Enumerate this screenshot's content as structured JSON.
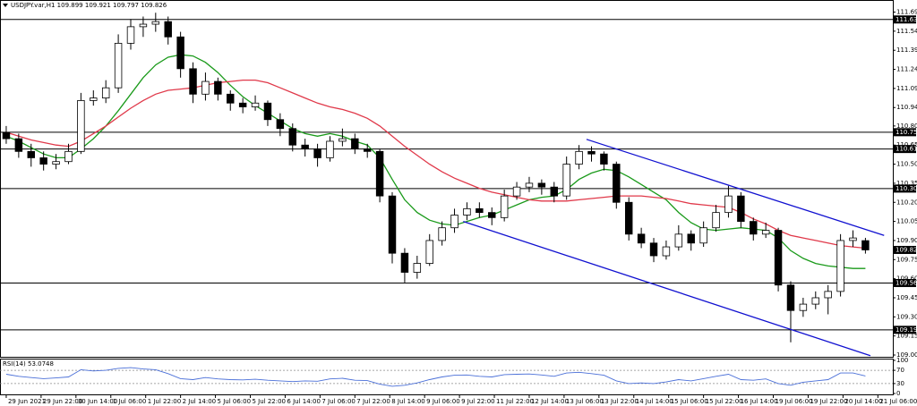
{
  "chart_data": {
    "type": "candlestick",
    "title": "USDJPY.var,H1",
    "ohlc": [
      [
        110.75,
        110.8,
        110.66,
        110.7
      ],
      [
        110.7,
        110.74,
        110.55,
        110.6
      ],
      [
        110.6,
        110.66,
        110.48,
        110.55
      ],
      [
        110.55,
        110.6,
        110.45,
        110.5
      ],
      [
        110.5,
        110.58,
        110.46,
        110.52
      ],
      [
        110.52,
        110.66,
        110.5,
        110.6
      ],
      [
        110.6,
        111.06,
        110.58,
        111.0
      ],
      [
        111.0,
        111.08,
        110.96,
        111.02
      ],
      [
        111.02,
        111.16,
        110.98,
        111.1
      ],
      [
        111.1,
        111.52,
        111.06,
        111.45
      ],
      [
        111.45,
        111.64,
        111.4,
        111.58
      ],
      [
        111.58,
        111.66,
        111.5,
        111.6
      ],
      [
        111.6,
        111.69,
        111.54,
        111.62
      ],
      [
        111.62,
        111.66,
        111.44,
        111.5
      ],
      [
        111.5,
        111.54,
        111.18,
        111.25
      ],
      [
        111.25,
        111.3,
        110.98,
        111.05
      ],
      [
        111.05,
        111.22,
        111.0,
        111.15
      ],
      [
        111.15,
        111.18,
        111.0,
        111.05
      ],
      [
        111.05,
        111.08,
        110.92,
        110.98
      ],
      [
        110.98,
        111.02,
        110.9,
        110.95
      ],
      [
        110.95,
        111.04,
        110.92,
        110.98
      ],
      [
        110.98,
        111.0,
        110.8,
        110.85
      ],
      [
        110.85,
        110.9,
        110.72,
        110.78
      ],
      [
        110.78,
        110.82,
        110.6,
        110.65
      ],
      [
        110.65,
        110.7,
        110.56,
        110.62
      ],
      [
        110.62,
        110.66,
        110.48,
        110.55
      ],
      [
        110.55,
        110.72,
        110.52,
        110.68
      ],
      [
        110.68,
        110.78,
        110.64,
        110.7
      ],
      [
        110.7,
        110.74,
        110.58,
        110.62
      ],
      [
        110.62,
        110.66,
        110.55,
        110.6
      ],
      [
        110.6,
        110.62,
        110.2,
        110.25
      ],
      [
        110.25,
        110.28,
        109.72,
        109.8
      ],
      [
        109.8,
        109.84,
        109.57,
        109.65
      ],
      [
        109.65,
        109.78,
        109.6,
        109.72
      ],
      [
        109.72,
        109.95,
        109.7,
        109.9
      ],
      [
        109.9,
        110.05,
        109.86,
        110.0
      ],
      [
        110.0,
        110.15,
        109.96,
        110.1
      ],
      [
        110.1,
        110.2,
        110.06,
        110.15
      ],
      [
        110.15,
        110.2,
        110.08,
        110.12
      ],
      [
        110.12,
        110.16,
        110.02,
        110.08
      ],
      [
        110.08,
        110.3,
        110.05,
        110.25
      ],
      [
        110.25,
        110.36,
        110.22,
        110.32
      ],
      [
        110.32,
        110.4,
        110.28,
        110.35
      ],
      [
        110.35,
        110.38,
        110.26,
        110.32
      ],
      [
        110.32,
        110.36,
        110.2,
        110.25
      ],
      [
        110.25,
        110.56,
        110.22,
        110.5
      ],
      [
        110.5,
        110.65,
        110.46,
        110.6
      ],
      [
        110.6,
        110.64,
        110.52,
        110.58
      ],
      [
        110.58,
        110.6,
        110.45,
        110.5
      ],
      [
        110.5,
        110.52,
        110.15,
        110.2
      ],
      [
        110.2,
        110.24,
        109.9,
        109.95
      ],
      [
        109.95,
        110.0,
        109.84,
        109.88
      ],
      [
        109.88,
        109.92,
        109.73,
        109.78
      ],
      [
        109.78,
        109.9,
        109.75,
        109.85
      ],
      [
        109.85,
        110.02,
        109.82,
        109.95
      ],
      [
        109.95,
        109.98,
        109.82,
        109.88
      ],
      [
        109.88,
        110.05,
        109.85,
        110.0
      ],
      [
        110.0,
        110.18,
        109.97,
        110.12
      ],
      [
        110.12,
        110.33,
        110.08,
        110.25
      ],
      [
        110.25,
        110.28,
        110.0,
        110.05
      ],
      [
        110.05,
        110.08,
        109.9,
        109.95
      ],
      [
        109.95,
        110.04,
        109.92,
        109.98
      ],
      [
        109.98,
        110.0,
        109.5,
        109.55
      ],
      [
        109.55,
        109.58,
        109.1,
        109.35
      ],
      [
        109.35,
        109.45,
        109.3,
        109.4
      ],
      [
        109.4,
        109.5,
        109.36,
        109.45
      ],
      [
        109.45,
        109.55,
        109.32,
        109.5
      ],
      [
        109.5,
        109.95,
        109.46,
        109.9
      ],
      [
        109.9,
        109.98,
        109.85,
        109.92
      ],
      [
        109.899,
        109.921,
        109.797,
        109.826
      ]
    ],
    "moving_averages": [
      {
        "color": "#1a9a1a",
        "values": [
          110.72,
          110.68,
          110.63,
          110.58,
          110.55,
          110.55,
          110.62,
          110.7,
          110.8,
          110.92,
          111.05,
          111.18,
          111.28,
          111.34,
          111.36,
          111.35,
          111.3,
          111.22,
          111.12,
          111.03,
          110.96,
          110.9,
          110.84,
          110.78,
          110.74,
          110.72,
          110.74,
          110.72,
          110.68,
          110.65,
          110.55,
          110.38,
          110.22,
          110.12,
          110.06,
          110.03,
          110.02,
          110.05,
          110.08,
          110.1,
          110.14,
          110.18,
          110.22,
          110.24,
          110.25,
          110.3,
          110.38,
          110.43,
          110.46,
          110.45,
          110.4,
          110.34,
          110.28,
          110.22,
          110.12,
          110.04,
          109.99,
          109.98,
          109.99,
          110.0,
          109.99,
          109.98,
          109.92,
          109.82,
          109.76,
          109.72,
          109.7,
          109.69,
          109.68,
          109.68
        ]
      },
      {
        "color": "#e0394a",
        "values": [
          110.75,
          110.72,
          110.69,
          110.67,
          110.65,
          110.64,
          110.68,
          110.74,
          110.8,
          110.87,
          110.94,
          111.0,
          111.05,
          111.08,
          111.09,
          111.1,
          111.12,
          111.14,
          111.15,
          111.16,
          111.16,
          111.14,
          111.1,
          111.06,
          111.02,
          110.98,
          110.95,
          110.93,
          110.9,
          110.86,
          110.8,
          110.72,
          110.64,
          110.57,
          110.5,
          110.44,
          110.39,
          110.35,
          110.31,
          110.28,
          110.26,
          110.24,
          110.22,
          110.21,
          110.21,
          110.21,
          110.22,
          110.23,
          110.24,
          110.25,
          110.25,
          110.25,
          110.24,
          110.23,
          110.21,
          110.19,
          110.18,
          110.17,
          110.16,
          110.12,
          110.07,
          110.03,
          109.98,
          109.94,
          109.92,
          109.9,
          109.88,
          109.86,
          109.85,
          109.84
        ]
      }
    ],
    "trendlines": [
      {
        "color": "#1010d0",
        "x": [
          46.6,
          70.5
        ],
        "y": [
          110.695,
          109.94
        ]
      },
      {
        "color": "#1010d0",
        "x": [
          36.7,
          69.4
        ],
        "y": [
          110.05,
          108.995
        ]
      }
    ],
    "levels": [
      111.637,
      110.751,
      110.619,
      110.308,
      109.566,
      109.198
    ],
    "xlim": [
      -0.5,
      71.2
    ],
    "ylim": [
      108.986,
      111.79
    ],
    "yticks": [
      111.695,
      111.545,
      111.395,
      111.245,
      111.095,
      110.945,
      {
        "value": 110.8,
        "label": "110.800"
      },
      {
        "value": 110.65,
        "label": "110.650"
      },
      {
        "value": 110.5,
        "label": "110.500"
      },
      {
        "value": 110.35,
        "label": "110.350"
      },
      {
        "value": 110.2,
        "label": "110.200"
      },
      {
        "value": 110.05,
        "label": "110.050"
      },
      {
        "value": 109.9,
        "label": "109.900"
      },
      {
        "value": 109.75,
        "label": "109.750"
      },
      {
        "value": 109.6,
        "label": "109.600"
      },
      {
        "value": 109.45,
        "label": "109.450"
      },
      {
        "value": 109.3,
        "label": "109.300"
      },
      {
        "value": 109.15,
        "label": "109.150"
      },
      {
        "value": 109,
        "label": "109.000"
      }
    ],
    "xticks": [
      {
        "value": 0,
        "label": "29 Jun 2021"
      },
      {
        "value": 2.8,
        "label": "29 Jun 22:00"
      },
      {
        "value": 5.6,
        "label": "30 Jun 14:00"
      },
      {
        "value": 8.4,
        "label": "1 Jul 06:00"
      },
      {
        "value": 11.2,
        "label": "1 Jul 22:00"
      },
      {
        "value": 14,
        "label": "2 Jul 14:00"
      },
      {
        "value": 16.8,
        "label": "5 Jul 06:00"
      },
      {
        "value": 19.6,
        "label": "5 Jul 22:00"
      },
      {
        "value": 22.4,
        "label": "6 Jul 14:00"
      },
      {
        "value": 25.2,
        "label": "7 Jul 06:00"
      },
      {
        "value": 28,
        "label": "7 Jul 22:00"
      },
      {
        "value": 30.8,
        "label": "8 Jul 14:00"
      },
      {
        "value": 33.6,
        "label": "9 Jul 06:00"
      },
      {
        "value": 36.4,
        "label": "9 Jul 22:00"
      },
      {
        "value": 39.2,
        "label": "11 Jul 22:00"
      },
      {
        "value": 42,
        "label": "12 Jul 14:00"
      },
      {
        "value": 44.8,
        "label": "13 Jul 06:00"
      },
      {
        "value": 47.6,
        "label": "13 Jul 22:00"
      },
      {
        "value": 50.4,
        "label": "14 Jul 14:00"
      },
      {
        "value": 53.2,
        "label": "15 Jul 06:00"
      },
      {
        "value": 56,
        "label": "15 Jul 22:00"
      },
      {
        "value": 58.8,
        "label": "16 Jul 14:00"
      },
      {
        "value": 61.6,
        "label": "19 Jul 06:00"
      },
      {
        "value": 64.4,
        "label": "19 Jul 22:00"
      },
      {
        "value": 67.2,
        "label": "20 Jul 14:00"
      },
      {
        "value": 70,
        "label": "21 Jul 06:00"
      }
    ],
    "rsi": {
      "label": "RSI(14)",
      "color": "#4a6fd8",
      "values": [
        58,
        52,
        48,
        45,
        47,
        50,
        72,
        68,
        70,
        76,
        78,
        74,
        72,
        60,
        45,
        42,
        48,
        44,
        42,
        41,
        43,
        40,
        38,
        36,
        38,
        37,
        44,
        46,
        40,
        39,
        28,
        22,
        25,
        32,
        42,
        50,
        55,
        56,
        52,
        50,
        57,
        58,
        59,
        56,
        52,
        62,
        64,
        60,
        55,
        38,
        30,
        32,
        30,
        35,
        42,
        38,
        45,
        52,
        58,
        42,
        40,
        44,
        30,
        25,
        34,
        38,
        42,
        62,
        62,
        53.0748
      ],
      "ylim": [
        0,
        100
      ],
      "yticks": [
        100,
        70,
        30,
        0
      ],
      "levels": [
        70,
        30
      ]
    }
  }
}
